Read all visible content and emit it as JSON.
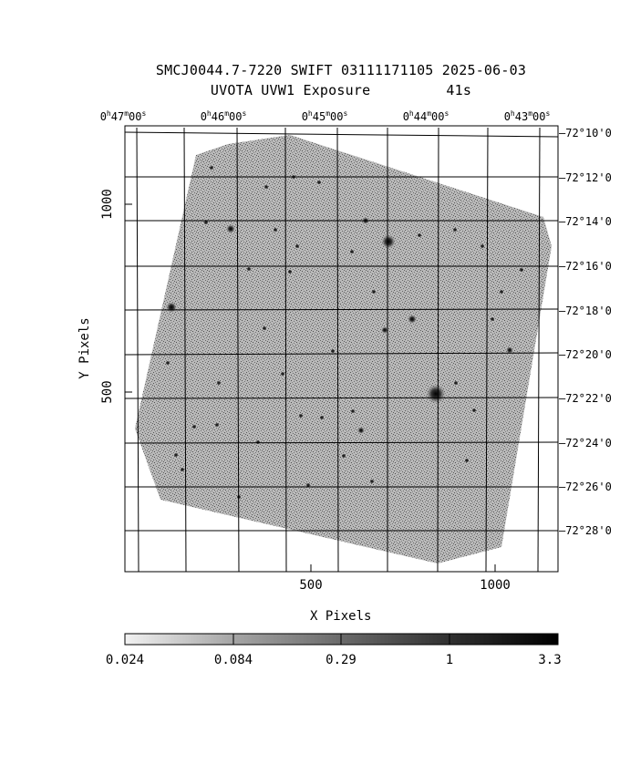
{
  "title": {
    "line1": "SMCJ0044.7-7220 SWIFT 03111171105 2025-06-03",
    "line2": "UVOTA UVW1 Exposure         41s"
  },
  "axes": {
    "xlabel": "X Pixels",
    "ylabel": "Y Pixels",
    "x_ticks": [
      "500",
      "1000"
    ],
    "y_ticks": [
      "1000",
      "500"
    ],
    "ra_ticks": [
      {
        "h": "0",
        "m": "47",
        "s": "00"
      },
      {
        "h": "0",
        "m": "46",
        "s": "00"
      },
      {
        "h": "0",
        "m": "45",
        "s": "00"
      },
      {
        "h": "0",
        "m": "44",
        "s": "00"
      },
      {
        "h": "0",
        "m": "43",
        "s": "00"
      }
    ],
    "dec_ticks": [
      "-72°10'0",
      "-72°12'0",
      "-72°14'0",
      "-72°16'0",
      "-72°18'0",
      "-72°20'0",
      "-72°22'0",
      "-72°24'0",
      "-72°26'0",
      "-72°28'0"
    ]
  },
  "colorbar": {
    "labels": [
      "0.024",
      "0.084",
      "0.29",
      "1",
      "3.3"
    ]
  }
}
